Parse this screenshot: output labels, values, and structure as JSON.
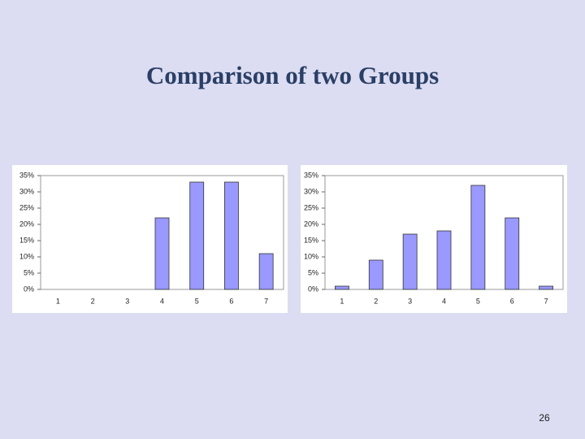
{
  "title": "Comparison of two Groups",
  "page_number": "26",
  "chart_data": [
    {
      "type": "bar",
      "categories": [
        "1",
        "2",
        "3",
        "4",
        "5",
        "6",
        "7"
      ],
      "values": [
        0,
        0,
        0,
        22,
        33,
        33,
        11
      ],
      "color": "#9999ff",
      "ylim": [
        0,
        35
      ],
      "yticks": [
        {
          "value": 0,
          "label": "0%"
        },
        {
          "value": 5,
          "label": "5%"
        },
        {
          "value": 10,
          "label": "10%"
        },
        {
          "value": 15,
          "label": "15%"
        },
        {
          "value": 20,
          "label": "20%"
        },
        {
          "value": 25,
          "label": "25%"
        },
        {
          "value": 30,
          "label": "30%"
        },
        {
          "value": 35,
          "label": "35%"
        }
      ]
    },
    {
      "type": "bar",
      "categories": [
        "1",
        "2",
        "3",
        "4",
        "5",
        "6",
        "7"
      ],
      "values": [
        1,
        9,
        17,
        18,
        32,
        22,
        1
      ],
      "color": "#9999ff",
      "ylim": [
        0,
        35
      ],
      "yticks": [
        {
          "value": 0,
          "label": "0%"
        },
        {
          "value": 5,
          "label": "5%"
        },
        {
          "value": 10,
          "label": "10%"
        },
        {
          "value": 15,
          "label": "15%"
        },
        {
          "value": 20,
          "label": "20%"
        },
        {
          "value": 25,
          "label": "25%"
        },
        {
          "value": 30,
          "label": "30%"
        },
        {
          "value": 35,
          "label": "35%"
        }
      ]
    }
  ]
}
